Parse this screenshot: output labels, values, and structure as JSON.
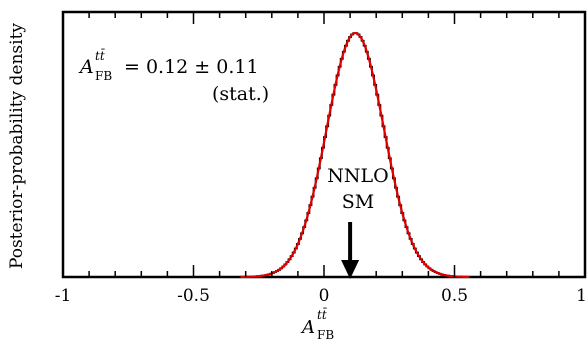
{
  "chart_data": {
    "type": "line",
    "title": "",
    "xlabel": "A_FB^{tt̄}",
    "ylabel": "Posterior-probability density",
    "xlim": [
      -1,
      1
    ],
    "ylim": [
      0,
      1.0
    ],
    "xticks": [
      "-1",
      "-0.5",
      "0",
      "0.5",
      "1"
    ],
    "grid": false,
    "series": [
      {
        "style": "black histogram (steps)",
        "color": "#000000",
        "distribution": "gaussian",
        "mean": 0.12,
        "sigma": 0.11
      },
      {
        "style": "red smooth fit",
        "color": "#e00000",
        "distribution": "gaussian",
        "mean": 0.12,
        "sigma": 0.11
      }
    ],
    "annotation": {
      "symbol": "A_FB^{tt̄}",
      "value_text": "= 0.12 ± 0.11",
      "stat_label": "(stat.)"
    },
    "marker": {
      "label_line1": "NNLO",
      "label_line2": "SM",
      "x": 0.1,
      "arrow": "down"
    }
  }
}
